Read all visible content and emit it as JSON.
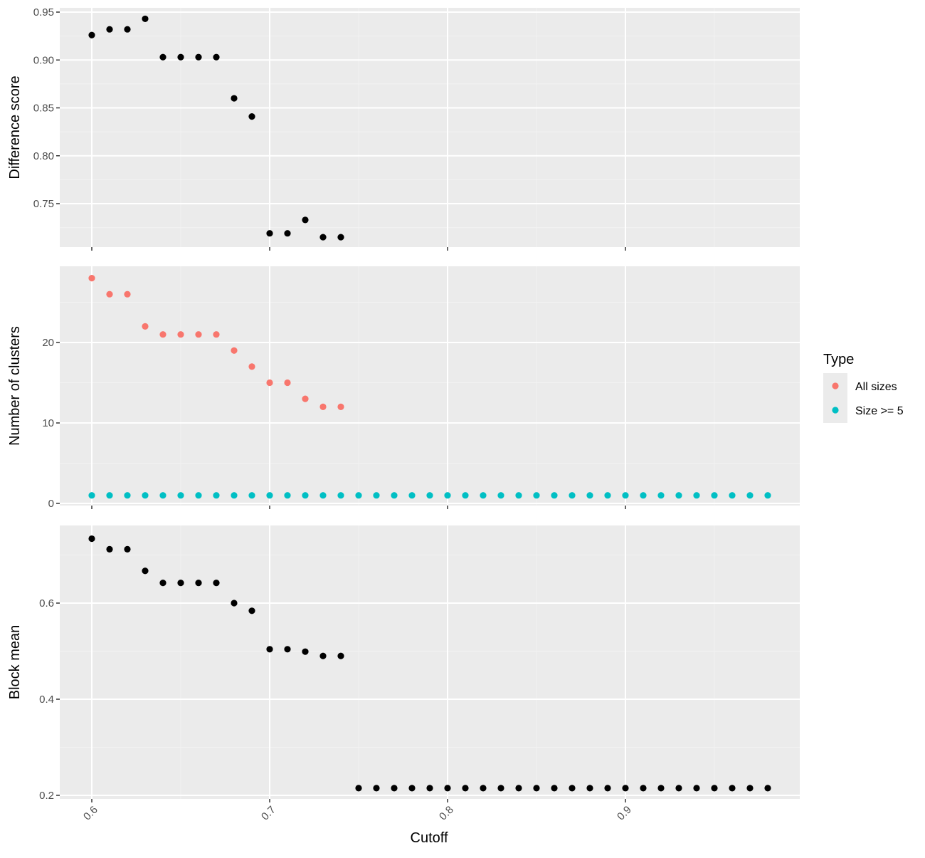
{
  "colors": {
    "panel_bg": "#EBEBEB",
    "grid_major": "#FFFFFF",
    "grid_minor": "#F2F2F2",
    "tick": "#333333",
    "point_default": "#000000",
    "all_sizes": "#F8766D",
    "size_ge_5": "#00BFC4"
  },
  "chart_data": [
    {
      "type": "scatter",
      "panel": "top",
      "ylabel": "Difference score",
      "ylim": [
        0.7,
        0.95
      ],
      "y_ticks": [
        0.75,
        0.8,
        0.85,
        0.9,
        0.95
      ],
      "y_tick_labels": [
        "0.75",
        "0.80",
        "0.85",
        "0.90",
        "0.95"
      ],
      "grid": true,
      "series": [
        {
          "x": [
            0.6,
            0.61,
            0.62,
            0.63,
            0.64,
            0.65,
            0.66,
            0.67,
            0.68,
            0.69,
            0.7,
            0.71,
            0.72,
            0.73,
            0.74
          ],
          "y": [
            0.926,
            0.932,
            0.932,
            0.943,
            0.903,
            0.903,
            0.903,
            0.903,
            0.86,
            0.841,
            0.719,
            0.719,
            0.733,
            0.715,
            0.715
          ]
        }
      ]
    },
    {
      "type": "scatter",
      "panel": "middle",
      "ylabel": "Number of clusters",
      "ylim": [
        0,
        28
      ],
      "y_ticks": [
        0,
        10,
        20
      ],
      "y_tick_labels": [
        "0",
        "10",
        "20"
      ],
      "grid": true,
      "series": [
        {
          "name": "All sizes",
          "x": [
            0.6,
            0.61,
            0.62,
            0.63,
            0.64,
            0.65,
            0.66,
            0.67,
            0.68,
            0.69,
            0.7,
            0.71,
            0.72,
            0.73,
            0.74
          ],
          "y": [
            28,
            26,
            26,
            22,
            21,
            21,
            21,
            21,
            19,
            17,
            15,
            15,
            13,
            12,
            12
          ]
        },
        {
          "name": "Size >= 5",
          "x": [
            0.6,
            0.61,
            0.62,
            0.63,
            0.64,
            0.65,
            0.66,
            0.67,
            0.68,
            0.69,
            0.7,
            0.71,
            0.72,
            0.73,
            0.74,
            0.75,
            0.76,
            0.77,
            0.78,
            0.79,
            0.8,
            0.81,
            0.82,
            0.83,
            0.84,
            0.85,
            0.86,
            0.87,
            0.88,
            0.89,
            0.9,
            0.91,
            0.92,
            0.93,
            0.94,
            0.95,
            0.96,
            0.97,
            0.98
          ],
          "y": [
            1,
            1,
            1,
            1,
            1,
            1,
            1,
            1,
            1,
            1,
            1,
            1,
            1,
            1,
            1,
            1,
            1,
            1,
            1,
            1,
            1,
            1,
            1,
            1,
            1,
            1,
            1,
            1,
            1,
            1,
            1,
            1,
            1,
            1,
            1,
            1,
            1,
            1,
            1
          ]
        }
      ]
    },
    {
      "type": "scatter",
      "panel": "bottom",
      "ylabel": "Block mean",
      "ylim": [
        0.2,
        0.73
      ],
      "y_ticks": [
        0.2,
        0.4,
        0.6
      ],
      "y_tick_labels": [
        "0.2",
        "0.4",
        "0.6"
      ],
      "grid": true,
      "series": [
        {
          "x": [
            0.6,
            0.61,
            0.62,
            0.63,
            0.64,
            0.65,
            0.66,
            0.67,
            0.68,
            0.69,
            0.7,
            0.71,
            0.72,
            0.73,
            0.74,
            0.75,
            0.76,
            0.77,
            0.78,
            0.79,
            0.8,
            0.81,
            0.82,
            0.83,
            0.84,
            0.85,
            0.86,
            0.87,
            0.88,
            0.89,
            0.9,
            0.91,
            0.92,
            0.93,
            0.94,
            0.95,
            0.96,
            0.97,
            0.98
          ],
          "y": [
            0.734,
            0.712,
            0.712,
            0.667,
            0.642,
            0.642,
            0.642,
            0.642,
            0.6,
            0.584,
            0.504,
            0.504,
            0.499,
            0.49,
            0.49,
            0.215,
            0.215,
            0.215,
            0.215,
            0.215,
            0.215,
            0.215,
            0.215,
            0.215,
            0.215,
            0.215,
            0.215,
            0.215,
            0.215,
            0.215,
            0.215,
            0.215,
            0.215,
            0.215,
            0.215,
            0.215,
            0.215,
            0.215,
            0.215
          ]
        }
      ]
    }
  ],
  "x_axis": {
    "xlabel": "Cutoff",
    "xlim": [
      0.6,
      0.98
    ],
    "ticks": [
      0.6,
      0.7,
      0.8,
      0.9
    ],
    "tick_labels": [
      "0.6",
      "0.7",
      "0.8",
      "0.9"
    ]
  },
  "legend": {
    "title": "Type",
    "placement": "right",
    "entries": [
      {
        "label": "All sizes",
        "color": "#F8766D"
      },
      {
        "label": "Size >= 5",
        "color": "#00BFC4"
      }
    ]
  }
}
